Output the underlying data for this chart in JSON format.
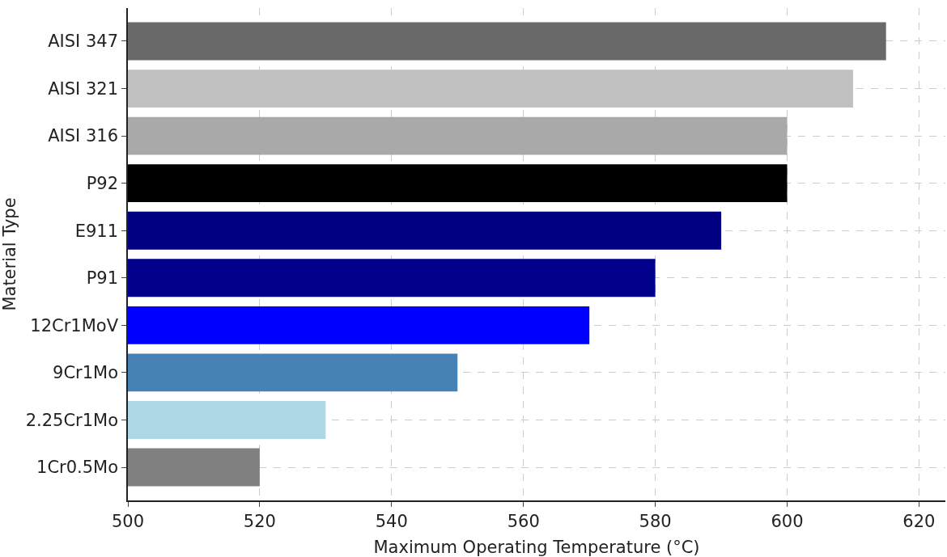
{
  "chart_data": {
    "type": "bar",
    "orientation": "horizontal",
    "xlabel": "Maximum Operating Temperature (°C)",
    "ylabel": "Material Type",
    "categories": [
      "AISI 347",
      "AISI 321",
      "AISI 316",
      "P92",
      "E911",
      "P91",
      "12Cr1MoV",
      "9Cr1Mo",
      "2.25Cr1Mo",
      "1Cr0.5Mo"
    ],
    "values": [
      615,
      610,
      600,
      600,
      590,
      580,
      570,
      550,
      530,
      520
    ],
    "colors": [
      "#696969",
      "#c0c0c0",
      "#a9a9a9",
      "#000000",
      "#000080",
      "#00008b",
      "#0000ff",
      "#4682b4",
      "#add8e6",
      "#808080"
    ],
    "xlim": [
      500,
      624
    ],
    "xticks": [
      500,
      520,
      540,
      560,
      580,
      600,
      620
    ],
    "grid": true
  }
}
